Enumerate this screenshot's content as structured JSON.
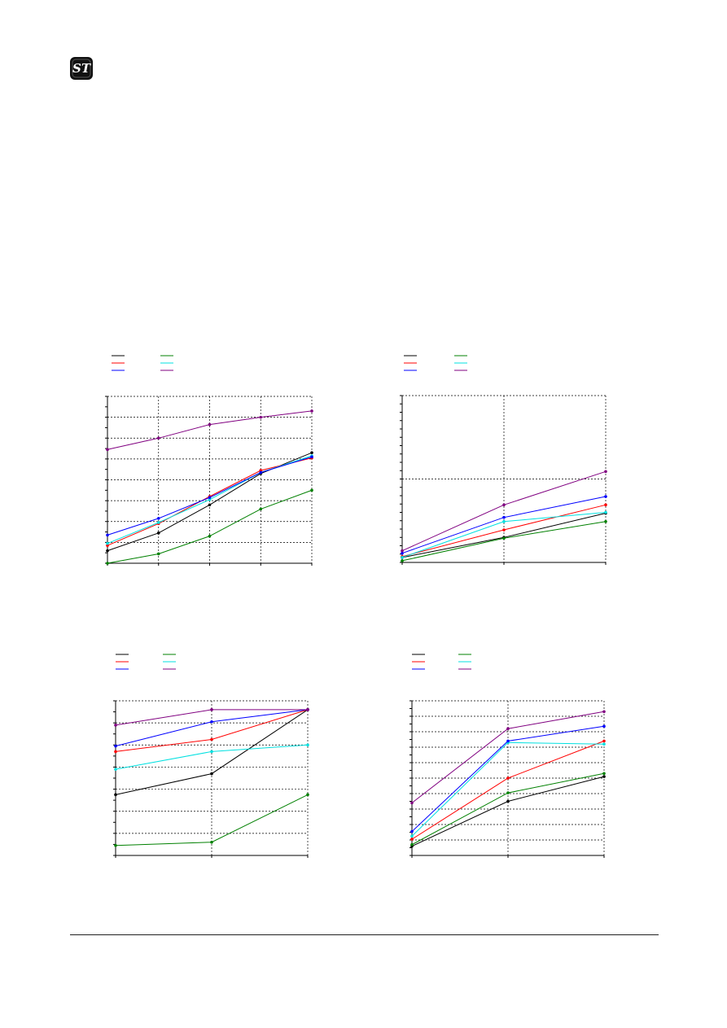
{
  "colors": {
    "black": "#000000",
    "green": "#008000",
    "red": "#ff0000",
    "cyan": "#00e0e0",
    "blue": "#0000ff",
    "purple": "#800080"
  },
  "logo": {
    "icon": "st-logo-icon",
    "text": "ST"
  },
  "chart_data": [
    {
      "type": "line",
      "title": "",
      "xlabel": "",
      "ylabel": "",
      "x": [
        0,
        1,
        2,
        3,
        4
      ],
      "xlim": [
        0,
        4
      ],
      "ylim": [
        0,
        8
      ],
      "grid": true,
      "legend": "top-left",
      "series": [
        {
          "color": "black",
          "values": [
            0.6,
            1.45,
            2.8,
            4.3,
            5.3
          ]
        },
        {
          "color": "green",
          "values": [
            0.0,
            0.45,
            1.3,
            2.6,
            3.5
          ]
        },
        {
          "color": "red",
          "values": [
            0.85,
            1.9,
            3.2,
            4.45,
            5.05
          ]
        },
        {
          "color": "cyan",
          "values": [
            0.95,
            1.95,
            3.05,
            4.35,
            5.15
          ]
        },
        {
          "color": "blue",
          "values": [
            1.35,
            2.15,
            3.15,
            4.35,
            5.1
          ]
        },
        {
          "color": "purple",
          "values": [
            5.45,
            6.0,
            6.65,
            7.0,
            7.3
          ]
        }
      ]
    },
    {
      "type": "line",
      "title": "",
      "xlabel": "",
      "ylabel": "",
      "x": [
        0,
        1,
        2
      ],
      "xlim": [
        0,
        2
      ],
      "ylim": [
        0,
        10
      ],
      "grid": true,
      "legend": "top-left",
      "series": [
        {
          "color": "black",
          "values": [
            0.3,
            1.5,
            2.95
          ]
        },
        {
          "color": "green",
          "values": [
            0.1,
            1.45,
            2.45
          ]
        },
        {
          "color": "red",
          "values": [
            0.35,
            1.95,
            3.45
          ]
        },
        {
          "color": "cyan",
          "values": [
            0.3,
            2.45,
            3.0
          ]
        },
        {
          "color": "blue",
          "values": [
            0.55,
            2.7,
            3.95
          ]
        },
        {
          "color": "purple",
          "values": [
            0.7,
            3.45,
            5.45
          ]
        }
      ]
    },
    {
      "type": "line",
      "title": "",
      "xlabel": "",
      "ylabel": "",
      "x": [
        0,
        1,
        2
      ],
      "xlim": [
        0,
        2
      ],
      "ylim": [
        0,
        7
      ],
      "grid": true,
      "legend": "top-left",
      "series": [
        {
          "color": "black",
          "values": [
            2.75,
            3.7,
            6.6
          ]
        },
        {
          "color": "green",
          "values": [
            0.45,
            0.6,
            2.75
          ]
        },
        {
          "color": "red",
          "values": [
            4.7,
            5.25,
            6.6
          ]
        },
        {
          "color": "cyan",
          "values": [
            3.9,
            4.7,
            5.0
          ]
        },
        {
          "color": "blue",
          "values": [
            4.95,
            6.05,
            6.6
          ]
        },
        {
          "color": "purple",
          "values": [
            5.9,
            6.6,
            6.6
          ]
        }
      ]
    },
    {
      "type": "line",
      "title": "",
      "xlabel": "",
      "ylabel": "",
      "x": [
        0,
        1,
        2
      ],
      "xlim": [
        0,
        2
      ],
      "ylim": [
        0,
        10
      ],
      "grid": true,
      "legend": "top-left",
      "series": [
        {
          "color": "black",
          "values": [
            0.6,
            3.5,
            5.1
          ]
        },
        {
          "color": "green",
          "values": [
            0.7,
            4.05,
            5.3
          ]
        },
        {
          "color": "red",
          "values": [
            1.05,
            5.0,
            7.4
          ]
        },
        {
          "color": "cyan",
          "values": [
            1.25,
            7.3,
            7.2
          ]
        },
        {
          "color": "blue",
          "values": [
            1.55,
            7.4,
            8.35
          ]
        },
        {
          "color": "purple",
          "values": [
            3.4,
            8.2,
            9.3
          ]
        }
      ]
    }
  ]
}
